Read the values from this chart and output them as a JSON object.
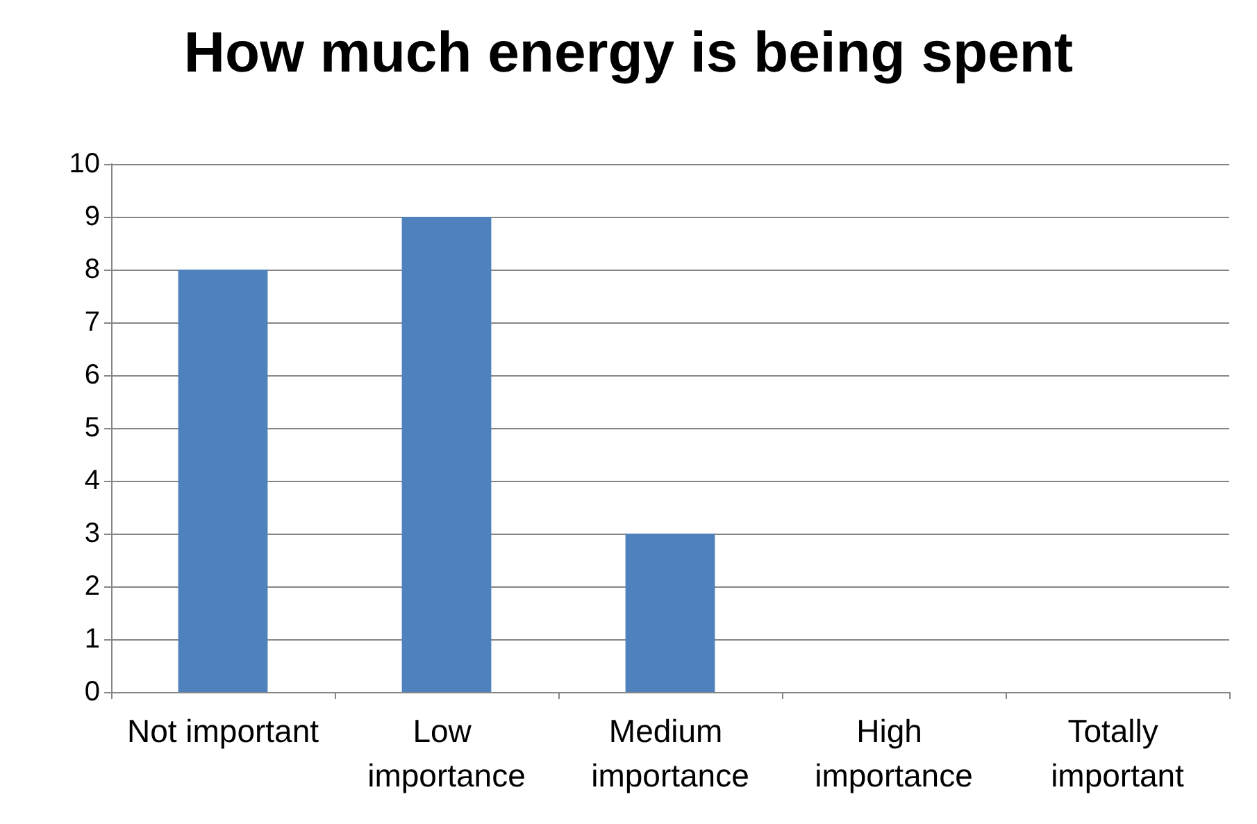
{
  "chart_data": {
    "type": "bar",
    "title": "How much energy is being spent",
    "categories": [
      "Not important",
      "Low importance",
      "Medium importance",
      "High importance",
      "Totally important"
    ],
    "values": [
      8,
      9,
      3,
      0,
      0
    ],
    "color": "#4f81bd",
    "ylim": [
      0,
      10
    ],
    "yticks": [
      0,
      1,
      2,
      3,
      4,
      5,
      6,
      7,
      8,
      9,
      10
    ],
    "grid": "y"
  }
}
